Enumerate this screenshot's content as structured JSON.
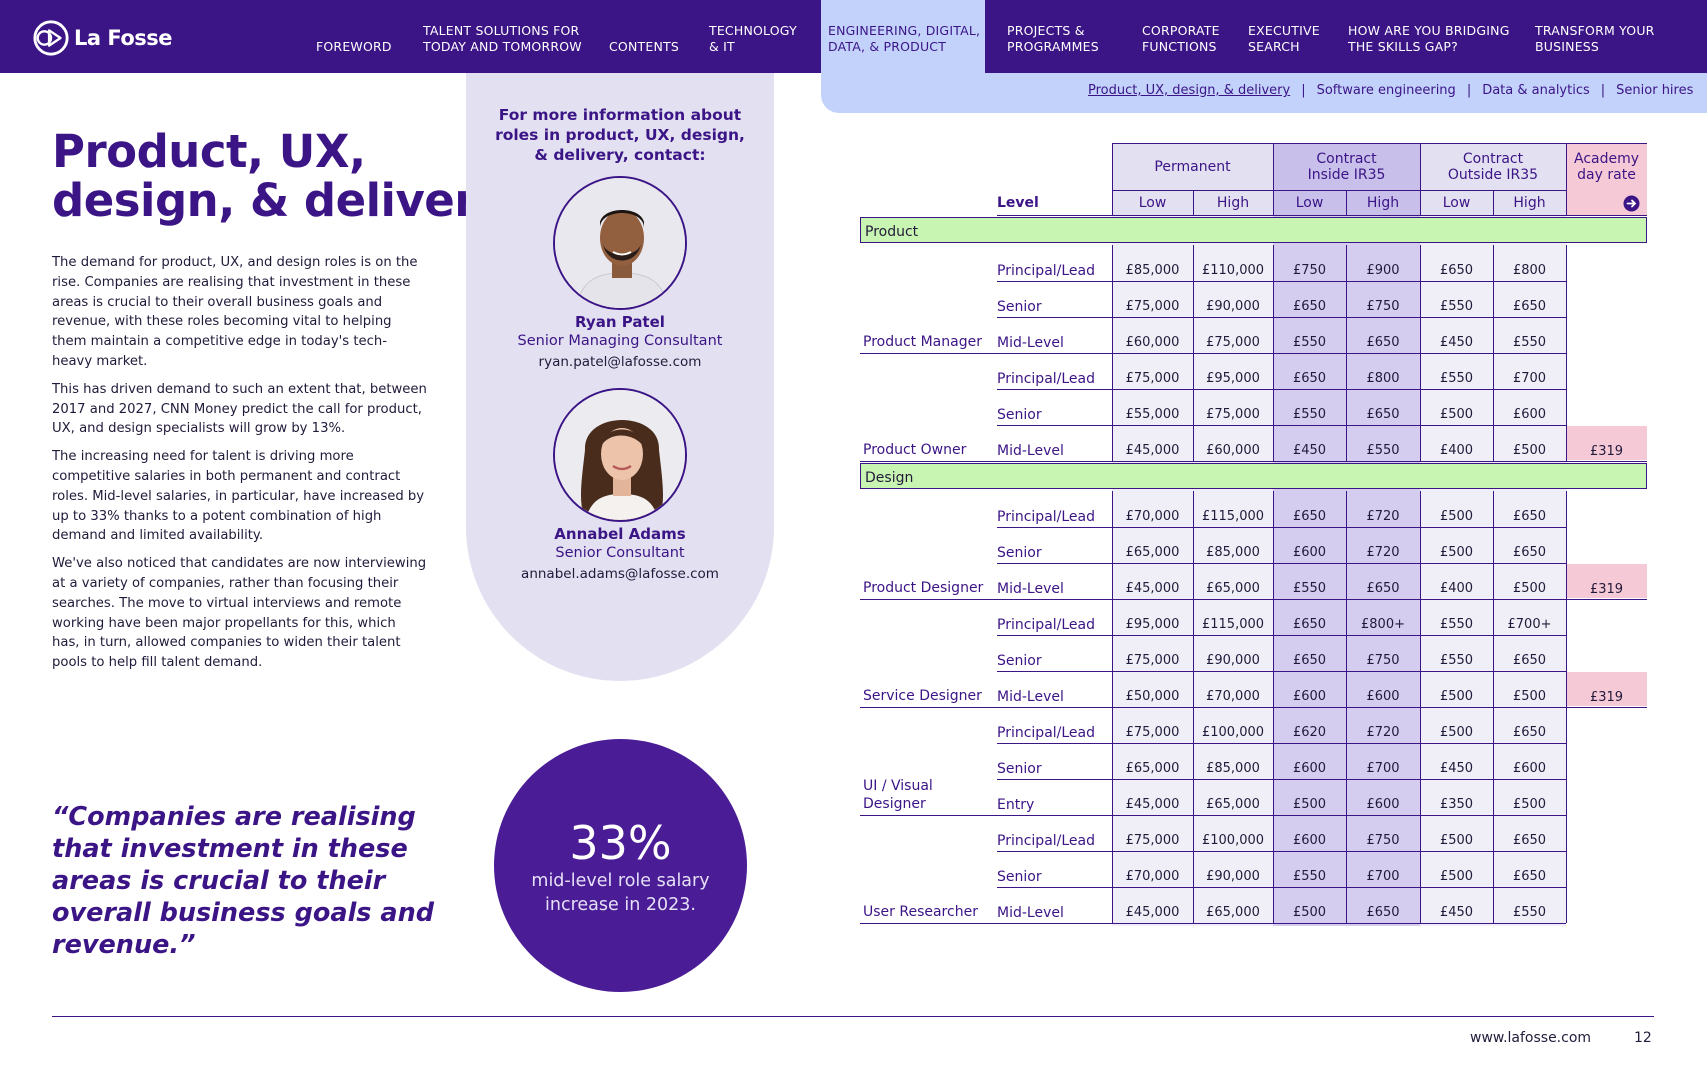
{
  "brand": {
    "name": "La Fosse",
    "accent": "#3b1486",
    "active_tab_color": "#c2d2fb"
  },
  "nav": {
    "items": [
      {
        "label": "FOREWORD"
      },
      {
        "label": "TALENT SOLUTIONS FOR\nTODAY AND TOMORROW"
      },
      {
        "label": "CONTENTS"
      },
      {
        "label": "TECHNOLOGY\n& IT"
      },
      {
        "label": "ENGINEERING, DIGITAL,\nDATA, & PRODUCT"
      },
      {
        "label": "PROJECTS &\nPROGRAMMES"
      },
      {
        "label": "CORPORATE\nFUNCTIONS"
      },
      {
        "label": "EXECUTIVE\nSEARCH"
      },
      {
        "label": "HOW ARE YOU BRIDGING\nTHE SKILLS GAP?"
      },
      {
        "label": "TRANSFORM YOUR\nBUSINESS"
      }
    ],
    "subnav": [
      "Product, UX, design, & delivery",
      "Software engineering",
      "Data & analytics",
      "Senior hires"
    ]
  },
  "page": {
    "title_line1": "Product, UX,",
    "title_line2": "design, & delivery",
    "paragraphs": [
      "The demand for product, UX, and design roles is on the rise. Companies are realising that investment in these areas is crucial to their overall business goals and revenue, with these roles becoming vital to helping them maintain a competitive edge in today's tech-heavy market.",
      "This has driven demand to such an extent that, between 2017 and 2027, CNN Money predict the call for product, UX, and design specialists will grow by 13%.",
      "The increasing need for talent is driving more competitive salaries in both permanent and contract roles. Mid-level salaries, in particular, have increased by up to 33% thanks to a potent combination of high demand and limited availability.",
      "We've also noticed that candidates are now interviewing at a variety of companies, rather than focusing their searches. The move to virtual interviews and remote working have been major propellants for this, which has, in turn, allowed companies to widen their talent pools to help fill talent demand."
    ],
    "quote": "“Companies are realising that investment in these areas is crucial to their overall business goals and revenue.”"
  },
  "contact": {
    "heading": "For more information about roles in product, UX, design, & delivery, contact:",
    "people": [
      {
        "name": "Ryan Patel",
        "role": "Senior Managing Consultant",
        "email": "ryan.patel@lafosse.com"
      },
      {
        "name": "Annabel Adams",
        "role": "Senior Consultant",
        "email": "annabel.adams@lafosse.com"
      }
    ]
  },
  "stat": {
    "value": "33%",
    "label": "mid-level role salary increase in 2023."
  },
  "table": {
    "level_header": "Level",
    "groups": [
      {
        "label": "Permanent"
      },
      {
        "label": "Contract\nInside IR35"
      },
      {
        "label": "Contract\nOutside IR35"
      },
      {
        "label": "Academy\nday rate"
      }
    ],
    "sub_headers": [
      "Low",
      "High",
      "Low",
      "High",
      "Low",
      "High"
    ],
    "sections": [
      {
        "name": "Product",
        "roles": [
          {
            "name": "Product Manager",
            "rows": [
              {
                "level": "Principal/Lead",
                "values": [
                  "£85,000",
                  "£110,000",
                  "£750",
                  "£900",
                  "£650",
                  "£800"
                ],
                "academy": ""
              },
              {
                "level": "Senior",
                "values": [
                  "£75,000",
                  "£90,000",
                  "£650",
                  "£750",
                  "£550",
                  "£650"
                ],
                "academy": ""
              },
              {
                "level": "Mid-Level",
                "values": [
                  "£60,000",
                  "£75,000",
                  "£550",
                  "£650",
                  "£450",
                  "£550"
                ],
                "academy": ""
              }
            ]
          },
          {
            "name": "Product Owner",
            "rows": [
              {
                "level": "Principal/Lead",
                "values": [
                  "£75,000",
                  "£95,000",
                  "£650",
                  "£800",
                  "£550",
                  "£700"
                ],
                "academy": ""
              },
              {
                "level": "Senior",
                "values": [
                  "£55,000",
                  "£75,000",
                  "£550",
                  "£650",
                  "£500",
                  "£600"
                ],
                "academy": ""
              },
              {
                "level": "Mid-Level",
                "values": [
                  "£45,000",
                  "£60,000",
                  "£450",
                  "£550",
                  "£400",
                  "£500"
                ],
                "academy": "£319"
              }
            ]
          }
        ]
      },
      {
        "name": "Design",
        "roles": [
          {
            "name": "Product Designer",
            "rows": [
              {
                "level": "Principal/Lead",
                "values": [
                  "£70,000",
                  "£115,000",
                  "£650",
                  "£720",
                  "£500",
                  "£650"
                ],
                "academy": ""
              },
              {
                "level": "Senior",
                "values": [
                  "£65,000",
                  "£85,000",
                  "£600",
                  "£720",
                  "£500",
                  "£650"
                ],
                "academy": ""
              },
              {
                "level": "Mid-Level",
                "values": [
                  "£45,000",
                  "£65,000",
                  "£550",
                  "£650",
                  "£400",
                  "£500"
                ],
                "academy": "£319"
              }
            ]
          },
          {
            "name": "Service Designer",
            "rows": [
              {
                "level": "Principal/Lead",
                "values": [
                  "£95,000",
                  "£115,000",
                  "£650",
                  "£800+",
                  "£550",
                  "£700+"
                ],
                "academy": ""
              },
              {
                "level": "Senior",
                "values": [
                  "£75,000",
                  "£90,000",
                  "£650",
                  "£750",
                  "£550",
                  "£650"
                ],
                "academy": ""
              },
              {
                "level": "Mid-Level",
                "values": [
                  "£50,000",
                  "£70,000",
                  "£600",
                  "£600",
                  "£500",
                  "£500"
                ],
                "academy": "£319"
              }
            ]
          },
          {
            "name": "UI / Visual\nDesigner",
            "rows": [
              {
                "level": "Principal/Lead",
                "values": [
                  "£75,000",
                  "£100,000",
                  "£620",
                  "£720",
                  "£500",
                  "£650"
                ],
                "academy": ""
              },
              {
                "level": "Senior",
                "values": [
                  "£65,000",
                  "£85,000",
                  "£600",
                  "£700",
                  "£450",
                  "£600"
                ],
                "academy": ""
              },
              {
                "level": "Entry",
                "values": [
                  "£45,000",
                  "£65,000",
                  "£500",
                  "£600",
                  "£350",
                  "£500"
                ],
                "academy": ""
              }
            ]
          },
          {
            "name": "User Researcher",
            "rows": [
              {
                "level": "Principal/Lead",
                "values": [
                  "£75,000",
                  "£100,000",
                  "£600",
                  "£750",
                  "£500",
                  "£650"
                ],
                "academy": ""
              },
              {
                "level": "Senior",
                "values": [
                  "£70,000",
                  "£90,000",
                  "£550",
                  "£700",
                  "£500",
                  "£650"
                ],
                "academy": ""
              },
              {
                "level": "Mid-Level",
                "values": [
                  "£45,000",
                  "£65,000",
                  "£500",
                  "£650",
                  "£450",
                  "£550"
                ],
                "academy": ""
              }
            ]
          }
        ]
      }
    ]
  },
  "footer": {
    "url": "www.lafosse.com",
    "page_number": "12"
  }
}
